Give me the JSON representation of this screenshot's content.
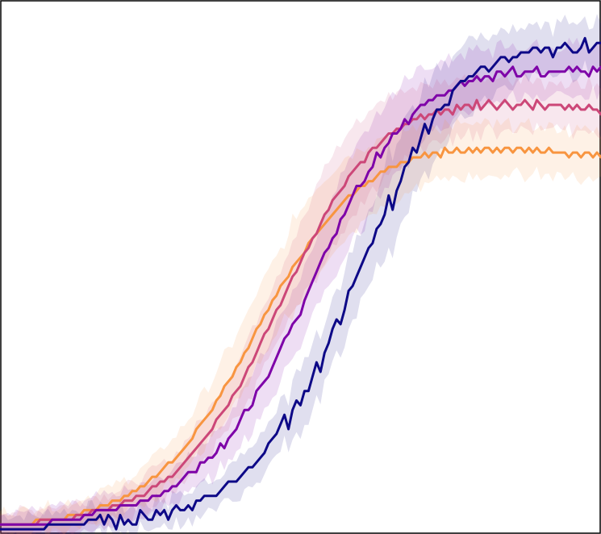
{
  "chart_data": {
    "type": "line",
    "title": "",
    "xlabel": "",
    "ylabel": "",
    "xlim": [
      0,
      150
    ],
    "ylim": [
      0,
      1.12
    ],
    "grid": false,
    "legend": "none",
    "x_step": 1,
    "series": [
      {
        "color": "#0d0887",
        "band": true,
        "midpoint": 95,
        "steepness": 0.105,
        "plateau": 1.02,
        "values": [
          0.01,
          0.01,
          0.01,
          0.01,
          0.01,
          0.01,
          0.01,
          0.01,
          0.01,
          0.01,
          0.01,
          0.01,
          0.02,
          0.02,
          0.02,
          0.02,
          0.02,
          0.02,
          0.02,
          0.02,
          0.02,
          0.02,
          0.03,
          0.03,
          0.03,
          0.04,
          0.02,
          0.04,
          0.03,
          0.01,
          0.04,
          0.02,
          0.03,
          0.02,
          0.02,
          0.05,
          0.04,
          0.03,
          0.03,
          0.05,
          0.04,
          0.05,
          0.03,
          0.05,
          0.06,
          0.05,
          0.05,
          0.06,
          0.05,
          0.07,
          0.07,
          0.08,
          0.08,
          0.08,
          0.08,
          0.09,
          0.1,
          0.11,
          0.11,
          0.11,
          0.12,
          0.13,
          0.14,
          0.14,
          0.15,
          0.16,
          0.17,
          0.19,
          0.2,
          0.21,
          0.23,
          0.25,
          0.22,
          0.26,
          0.28,
          0.27,
          0.3,
          0.3,
          0.33,
          0.36,
          0.34,
          0.38,
          0.4,
          0.43,
          0.45,
          0.44,
          0.47,
          0.51,
          0.52,
          0.54,
          0.56,
          0.58,
          0.6,
          0.61,
          0.64,
          0.65,
          0.67,
          0.71,
          0.68,
          0.72,
          0.74,
          0.77,
          0.78,
          0.81,
          0.8,
          0.83,
          0.86,
          0.84,
          0.87,
          0.89,
          0.89,
          0.9,
          0.9,
          0.93,
          0.94,
          0.95,
          0.95,
          0.96,
          0.96,
          0.97,
          0.98,
          0.98,
          0.97,
          0.98,
          0.99,
          1.0,
          1.0,
          0.99,
          1.0,
          1.0,
          1.01,
          1.01,
          1.01,
          1.02,
          1.02,
          1.01,
          1.02,
          1.02,
          1.0,
          1.02,
          1.02,
          1.03,
          1.02,
          1.01,
          1.01,
          1.02,
          1.04,
          1.01,
          1.02,
          1.03,
          1.03
        ]
      },
      {
        "color": "#7e03a8",
        "band": true,
        "midpoint": 83,
        "steepness": 0.095,
        "plateau": 0.97,
        "values": [
          0.02,
          0.02,
          0.02,
          0.02,
          0.02,
          0.02,
          0.02,
          0.02,
          0.02,
          0.02,
          0.02,
          0.02,
          0.02,
          0.03,
          0.03,
          0.03,
          0.03,
          0.03,
          0.03,
          0.03,
          0.03,
          0.04,
          0.04,
          0.04,
          0.05,
          0.05,
          0.05,
          0.05,
          0.05,
          0.05,
          0.06,
          0.06,
          0.06,
          0.06,
          0.06,
          0.07,
          0.07,
          0.07,
          0.08,
          0.08,
          0.08,
          0.09,
          0.09,
          0.1,
          0.1,
          0.11,
          0.12,
          0.13,
          0.13,
          0.13,
          0.15,
          0.15,
          0.16,
          0.16,
          0.17,
          0.19,
          0.18,
          0.2,
          0.21,
          0.22,
          0.24,
          0.26,
          0.26,
          0.27,
          0.3,
          0.31,
          0.32,
          0.33,
          0.35,
          0.37,
          0.39,
          0.41,
          0.42,
          0.44,
          0.45,
          0.46,
          0.49,
          0.51,
          0.53,
          0.55,
          0.57,
          0.59,
          0.6,
          0.62,
          0.63,
          0.66,
          0.67,
          0.69,
          0.71,
          0.73,
          0.73,
          0.74,
          0.76,
          0.77,
          0.8,
          0.79,
          0.81,
          0.82,
          0.84,
          0.84,
          0.85,
          0.87,
          0.86,
          0.88,
          0.89,
          0.9,
          0.9,
          0.91,
          0.91,
          0.92,
          0.92,
          0.92,
          0.93,
          0.93,
          0.94,
          0.95,
          0.94,
          0.95,
          0.95,
          0.96,
          0.95,
          0.96,
          0.96,
          0.95,
          0.97,
          0.97,
          0.96,
          0.97,
          0.98,
          0.96,
          0.96,
          0.97,
          0.97,
          0.97,
          0.98,
          0.96,
          0.96,
          0.97,
          0.97,
          0.97,
          0.97,
          0.97,
          0.98,
          0.97,
          0.98,
          0.97,
          0.97,
          0.96,
          0.98,
          0.97,
          0.98
        ]
      },
      {
        "color": "#cc4778",
        "band": true,
        "midpoint": 78,
        "steepness": 0.092,
        "plateau": 0.9,
        "values": [
          0.02,
          0.02,
          0.02,
          0.02,
          0.02,
          0.02,
          0.02,
          0.02,
          0.02,
          0.02,
          0.03,
          0.03,
          0.03,
          0.03,
          0.03,
          0.03,
          0.03,
          0.03,
          0.03,
          0.04,
          0.04,
          0.04,
          0.04,
          0.05,
          0.05,
          0.05,
          0.05,
          0.05,
          0.06,
          0.06,
          0.06,
          0.07,
          0.07,
          0.07,
          0.08,
          0.08,
          0.08,
          0.09,
          0.1,
          0.1,
          0.11,
          0.11,
          0.12,
          0.12,
          0.13,
          0.14,
          0.15,
          0.16,
          0.17,
          0.18,
          0.19,
          0.2,
          0.21,
          0.22,
          0.24,
          0.25,
          0.26,
          0.27,
          0.29,
          0.3,
          0.31,
          0.33,
          0.35,
          0.36,
          0.38,
          0.4,
          0.42,
          0.43,
          0.45,
          0.47,
          0.48,
          0.5,
          0.52,
          0.54,
          0.55,
          0.57,
          0.59,
          0.6,
          0.62,
          0.63,
          0.65,
          0.67,
          0.68,
          0.7,
          0.71,
          0.72,
          0.73,
          0.75,
          0.76,
          0.77,
          0.78,
          0.78,
          0.8,
          0.81,
          0.81,
          0.82,
          0.83,
          0.84,
          0.84,
          0.85,
          0.85,
          0.86,
          0.86,
          0.87,
          0.87,
          0.88,
          0.87,
          0.88,
          0.88,
          0.89,
          0.88,
          0.89,
          0.89,
          0.88,
          0.9,
          0.89,
          0.9,
          0.9,
          0.89,
          0.91,
          0.89,
          0.9,
          0.91,
          0.9,
          0.89,
          0.9,
          0.91,
          0.9,
          0.89,
          0.9,
          0.9,
          0.91,
          0.9,
          0.89,
          0.91,
          0.9,
          0.89,
          0.9,
          0.9,
          0.9,
          0.9,
          0.89,
          0.9,
          0.89,
          0.9,
          0.89,
          0.89,
          0.9,
          0.89,
          0.89,
          0.88
        ]
      },
      {
        "color": "#f89540",
        "band": true,
        "midpoint": 72,
        "steepness": 0.085,
        "plateau": 0.82,
        "values": [
          0.02,
          0.02,
          0.02,
          0.02,
          0.02,
          0.02,
          0.02,
          0.02,
          0.02,
          0.03,
          0.03,
          0.03,
          0.03,
          0.03,
          0.03,
          0.03,
          0.03,
          0.04,
          0.04,
          0.04,
          0.04,
          0.05,
          0.05,
          0.05,
          0.05,
          0.06,
          0.06,
          0.06,
          0.07,
          0.07,
          0.07,
          0.08,
          0.08,
          0.09,
          0.09,
          0.1,
          0.1,
          0.11,
          0.12,
          0.12,
          0.13,
          0.14,
          0.15,
          0.15,
          0.16,
          0.17,
          0.18,
          0.19,
          0.2,
          0.22,
          0.23,
          0.24,
          0.25,
          0.26,
          0.28,
          0.29,
          0.31,
          0.32,
          0.33,
          0.35,
          0.36,
          0.38,
          0.39,
          0.41,
          0.43,
          0.44,
          0.46,
          0.47,
          0.49,
          0.5,
          0.52,
          0.53,
          0.54,
          0.56,
          0.57,
          0.58,
          0.59,
          0.61,
          0.62,
          0.63,
          0.64,
          0.65,
          0.66,
          0.67,
          0.68,
          0.69,
          0.7,
          0.71,
          0.71,
          0.72,
          0.73,
          0.73,
          0.74,
          0.74,
          0.75,
          0.76,
          0.76,
          0.77,
          0.77,
          0.77,
          0.78,
          0.78,
          0.78,
          0.79,
          0.79,
          0.79,
          0.8,
          0.79,
          0.8,
          0.8,
          0.79,
          0.81,
          0.8,
          0.8,
          0.81,
          0.8,
          0.8,
          0.81,
          0.8,
          0.81,
          0.8,
          0.81,
          0.81,
          0.8,
          0.81,
          0.8,
          0.81,
          0.81,
          0.8,
          0.81,
          0.81,
          0.8,
          0.81,
          0.8,
          0.81,
          0.8,
          0.8,
          0.81,
          0.8,
          0.8,
          0.8,
          0.8,
          0.79,
          0.8,
          0.8,
          0.79,
          0.8,
          0.8,
          0.79,
          0.8,
          0.79
        ]
      }
    ]
  }
}
